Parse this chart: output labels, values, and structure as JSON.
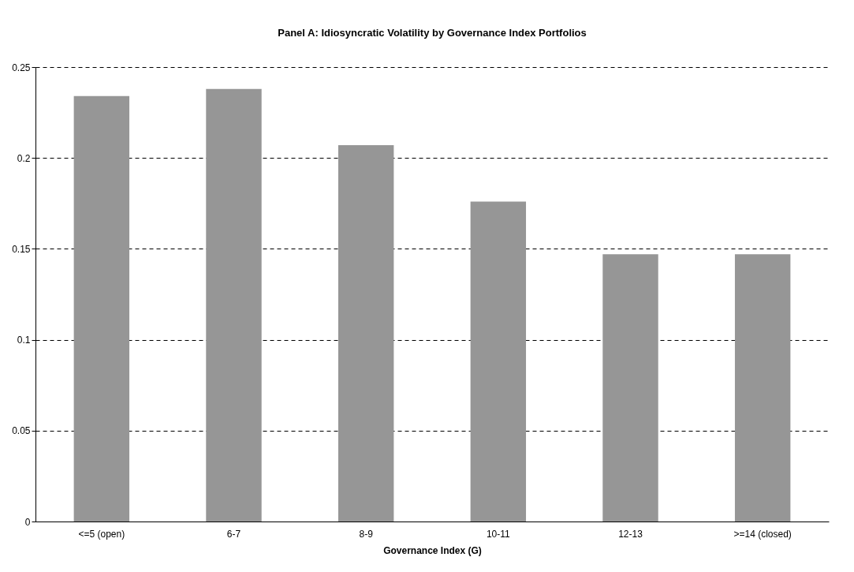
{
  "chart_data": {
    "type": "bar",
    "title": "Panel A: Idiosyncratic Volatility by Governance Index Portfolios",
    "xlabel": "Governance Index (G)",
    "categories": [
      "<=5 (open)",
      "6-7",
      "8-9",
      "10-11",
      "12-13",
      ">=14 (closed)"
    ],
    "values": [
      0.234,
      0.238,
      0.207,
      0.176,
      0.147,
      0.147
    ],
    "color": "#969696",
    "ylim": [
      0,
      0.25
    ],
    "yticks": [
      0,
      0.05,
      0.1,
      0.15,
      0.2,
      0.25
    ],
    "grid": "y"
  }
}
